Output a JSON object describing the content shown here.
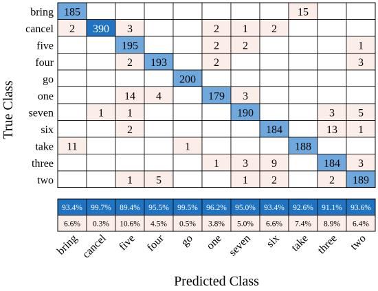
{
  "chart_data": {
    "type": "heatmap",
    "subtype": "confusion-matrix",
    "xlabel": "Predicted Class",
    "ylabel": "True Class",
    "classes": [
      "bring",
      "cancel",
      "five",
      "four",
      "go",
      "one",
      "seven",
      "six",
      "take",
      "three",
      "two"
    ],
    "matrix": [
      [
        185,
        null,
        null,
        null,
        null,
        null,
        null,
        null,
        15,
        null,
        null
      ],
      [
        2,
        390,
        3,
        null,
        null,
        2,
        1,
        2,
        null,
        null,
        null
      ],
      [
        null,
        null,
        195,
        null,
        null,
        2,
        2,
        null,
        null,
        null,
        1
      ],
      [
        null,
        null,
        2,
        193,
        null,
        2,
        null,
        null,
        null,
        null,
        3
      ],
      [
        null,
        null,
        null,
        null,
        200,
        null,
        null,
        null,
        null,
        null,
        null
      ],
      [
        null,
        null,
        14,
        4,
        null,
        179,
        3,
        null,
        null,
        null,
        null
      ],
      [
        null,
        1,
        1,
        null,
        null,
        null,
        190,
        null,
        null,
        3,
        5
      ],
      [
        null,
        null,
        2,
        null,
        null,
        null,
        null,
        184,
        null,
        13,
        1
      ],
      [
        11,
        null,
        null,
        null,
        1,
        null,
        null,
        null,
        188,
        null,
        null
      ],
      [
        null,
        null,
        null,
        null,
        null,
        1,
        3,
        9,
        null,
        184,
        3
      ],
      [
        null,
        null,
        1,
        5,
        null,
        null,
        1,
        2,
        null,
        2,
        189
      ]
    ],
    "precision": [
      "93.4%",
      "99.7%",
      "89.4%",
      "95.5%",
      "99.5%",
      "96.2%",
      "95.0%",
      "93.4%",
      "92.6%",
      "91.1%",
      "93.6%"
    ],
    "false_discovery": [
      "6.6%",
      "0.3%",
      "10.6%",
      "4.5%",
      "0.5%",
      "3.8%",
      "5.0%",
      "6.6%",
      "7.4%",
      "8.9%",
      "6.4%"
    ]
  },
  "colors": {
    "diagonal": "#6fa8dc",
    "diagonal_max": "#1f73c0",
    "offdiag": "#fbeee8",
    "precision_row": "#1f73c0",
    "fdr_row": "#fbeee8",
    "grid": "#000000",
    "text": "#000000",
    "text_on_dark": "#ffffff"
  }
}
